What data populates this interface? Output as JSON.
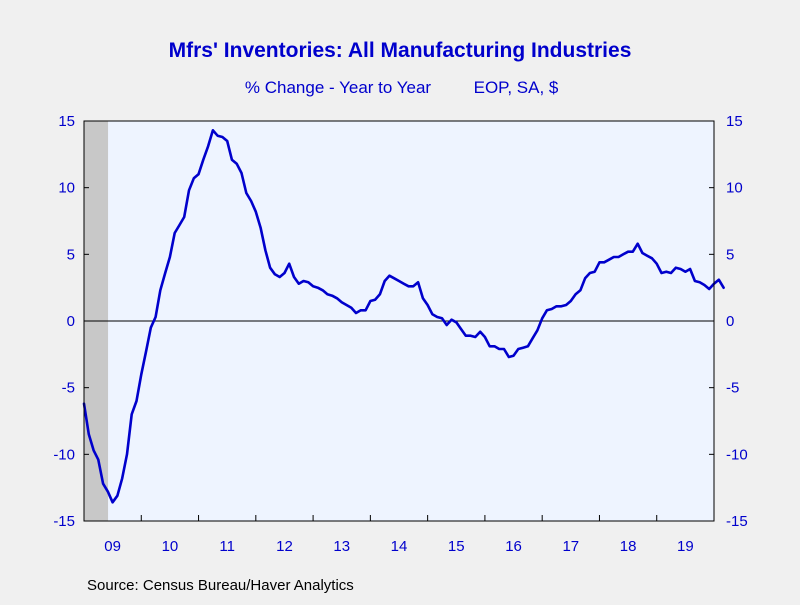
{
  "chart_data": {
    "type": "line",
    "title": "Mfrs' Inventories: All Manufacturing Industries",
    "subtitle_left": "% Change - Year to Year",
    "subtitle_right": "EOP, SA, $",
    "source": "Source:  Census Bureau/Haver Analytics",
    "xlabel": "",
    "ylabel": "",
    "ylim": [
      -15,
      15
    ],
    "y_ticks": [
      {
        "value": 15,
        "label": "15"
      },
      {
        "value": 10,
        "label": "10"
      },
      {
        "value": 5,
        "label": "5"
      },
      {
        "value": 0,
        "label": "0"
      },
      {
        "value": -5,
        "label": "-5"
      },
      {
        "value": -10,
        "label": "-10"
      },
      {
        "value": -15,
        "label": "-15"
      }
    ],
    "x_labels": [
      {
        "value": 2009.5,
        "label": "09"
      },
      {
        "value": 2010.5,
        "label": "10"
      },
      {
        "value": 2011.5,
        "label": "11"
      },
      {
        "value": 2012.5,
        "label": "12"
      },
      {
        "value": 2013.5,
        "label": "13"
      },
      {
        "value": 2014.5,
        "label": "14"
      },
      {
        "value": 2015.5,
        "label": "15"
      },
      {
        "value": 2016.5,
        "label": "16"
      },
      {
        "value": 2017.5,
        "label": "17"
      },
      {
        "value": 2018.5,
        "label": "18"
      },
      {
        "value": 2019.5,
        "label": "19"
      }
    ],
    "xlim": [
      2009.0,
      2020.0
    ],
    "recession": {
      "start": 2009.0,
      "end": 2009.42
    },
    "zero_line": true,
    "grid": false,
    "colors": {
      "line": "#0000cc",
      "text": "#0000cc",
      "plot_bg": "#eef4ff",
      "page_bg": "#f0f0f0",
      "recession": "#c8c8c8",
      "axis": "#000000"
    },
    "series": [
      {
        "points": [
          [
            2009.0,
            -6.2
          ],
          [
            2009.083,
            -8.5
          ],
          [
            2009.167,
            -9.7
          ],
          [
            2009.25,
            -10.4
          ],
          [
            2009.333,
            -12.2
          ],
          [
            2009.417,
            -12.8
          ],
          [
            2009.5,
            -13.6
          ],
          [
            2009.583,
            -13.1
          ],
          [
            2009.667,
            -11.8
          ],
          [
            2009.75,
            -10.0
          ],
          [
            2009.833,
            -7.0
          ],
          [
            2009.917,
            -6.0
          ],
          [
            2010.0,
            -4.0
          ],
          [
            2010.083,
            -2.3
          ],
          [
            2010.167,
            -0.5
          ],
          [
            2010.25,
            0.3
          ],
          [
            2010.333,
            2.3
          ],
          [
            2010.417,
            3.6
          ],
          [
            2010.5,
            4.8
          ],
          [
            2010.583,
            6.6
          ],
          [
            2010.667,
            7.2
          ],
          [
            2010.75,
            7.8
          ],
          [
            2010.833,
            9.8
          ],
          [
            2010.917,
            10.7
          ],
          [
            2011.0,
            11.0
          ],
          [
            2011.083,
            12.1
          ],
          [
            2011.167,
            13.1
          ],
          [
            2011.25,
            14.3
          ],
          [
            2011.333,
            13.9
          ],
          [
            2011.417,
            13.8
          ],
          [
            2011.5,
            13.5
          ],
          [
            2011.583,
            12.1
          ],
          [
            2011.667,
            11.8
          ],
          [
            2011.75,
            11.1
          ],
          [
            2011.833,
            9.6
          ],
          [
            2011.917,
            9.0
          ],
          [
            2012.0,
            8.2
          ],
          [
            2012.083,
            7.0
          ],
          [
            2012.167,
            5.3
          ],
          [
            2012.25,
            4.0
          ],
          [
            2012.333,
            3.5
          ],
          [
            2012.417,
            3.3
          ],
          [
            2012.5,
            3.6
          ],
          [
            2012.583,
            4.3
          ],
          [
            2012.667,
            3.3
          ],
          [
            2012.75,
            2.8
          ],
          [
            2012.833,
            3.0
          ],
          [
            2012.917,
            2.9
          ],
          [
            2013.0,
            2.6
          ],
          [
            2013.083,
            2.5
          ],
          [
            2013.167,
            2.3
          ],
          [
            2013.25,
            2.0
          ],
          [
            2013.333,
            1.9
          ],
          [
            2013.417,
            1.7
          ],
          [
            2013.5,
            1.4
          ],
          [
            2013.583,
            1.2
          ],
          [
            2013.667,
            1.0
          ],
          [
            2013.75,
            0.6
          ],
          [
            2013.833,
            0.8
          ],
          [
            2013.917,
            0.8
          ],
          [
            2014.0,
            1.5
          ],
          [
            2014.083,
            1.6
          ],
          [
            2014.167,
            2.0
          ],
          [
            2014.25,
            3.0
          ],
          [
            2014.333,
            3.4
          ],
          [
            2014.417,
            3.2
          ],
          [
            2014.5,
            3.0
          ],
          [
            2014.583,
            2.8
          ],
          [
            2014.667,
            2.6
          ],
          [
            2014.75,
            2.6
          ],
          [
            2014.833,
            2.9
          ],
          [
            2014.917,
            1.7
          ],
          [
            2015.0,
            1.2
          ],
          [
            2015.083,
            0.5
          ],
          [
            2015.167,
            0.3
          ],
          [
            2015.25,
            0.2
          ],
          [
            2015.333,
            -0.3
          ],
          [
            2015.417,
            0.1
          ],
          [
            2015.5,
            -0.1
          ],
          [
            2015.583,
            -0.6
          ],
          [
            2015.667,
            -1.1
          ],
          [
            2015.75,
            -1.1
          ],
          [
            2015.833,
            -1.2
          ],
          [
            2015.917,
            -0.8
          ],
          [
            2016.0,
            -1.2
          ],
          [
            2016.083,
            -1.9
          ],
          [
            2016.167,
            -1.9
          ],
          [
            2016.25,
            -2.1
          ],
          [
            2016.333,
            -2.1
          ],
          [
            2016.417,
            -2.7
          ],
          [
            2016.5,
            -2.6
          ],
          [
            2016.583,
            -2.1
          ],
          [
            2016.667,
            -2.0
          ],
          [
            2016.75,
            -1.9
          ],
          [
            2016.833,
            -1.3
          ],
          [
            2016.917,
            -0.7
          ],
          [
            2017.0,
            0.2
          ],
          [
            2017.083,
            0.8
          ],
          [
            2017.167,
            0.9
          ],
          [
            2017.25,
            1.1
          ],
          [
            2017.333,
            1.1
          ],
          [
            2017.417,
            1.2
          ],
          [
            2017.5,
            1.5
          ],
          [
            2017.583,
            2.0
          ],
          [
            2017.667,
            2.3
          ],
          [
            2017.75,
            3.2
          ],
          [
            2017.833,
            3.6
          ],
          [
            2017.917,
            3.7
          ],
          [
            2018.0,
            4.4
          ],
          [
            2018.083,
            4.4
          ],
          [
            2018.167,
            4.6
          ],
          [
            2018.25,
            4.8
          ],
          [
            2018.333,
            4.8
          ],
          [
            2018.417,
            5.0
          ],
          [
            2018.5,
            5.2
          ],
          [
            2018.583,
            5.2
          ],
          [
            2018.667,
            5.8
          ],
          [
            2018.75,
            5.1
          ],
          [
            2018.833,
            4.9
          ],
          [
            2018.917,
            4.7
          ],
          [
            2019.0,
            4.3
          ],
          [
            2019.083,
            3.6
          ],
          [
            2019.167,
            3.7
          ],
          [
            2019.25,
            3.6
          ],
          [
            2019.333,
            4.0
          ],
          [
            2019.417,
            3.9
          ],
          [
            2019.5,
            3.7
          ],
          [
            2019.583,
            3.9
          ],
          [
            2019.667,
            3.0
          ],
          [
            2019.75,
            2.9
          ],
          [
            2019.833,
            2.7
          ],
          [
            2019.917,
            2.4
          ],
          [
            2020.0,
            2.8
          ],
          [
            2020.083,
            3.1
          ],
          [
            2020.167,
            2.5
          ]
        ]
      }
    ]
  }
}
